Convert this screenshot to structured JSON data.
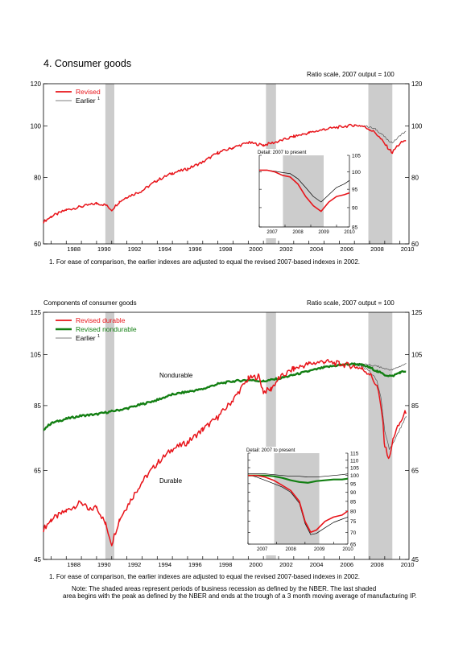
{
  "page": {
    "title": "4. Consumer goods",
    "top_scale": "Ratio scale, 2007 output = 100",
    "bottom_heading": "Components of consumer goods",
    "bottom_scale": "Ratio scale, 2007 output = 100",
    "footnote_top": "1. For ease of comparison, the earlier indexes are adjusted to equal the revised 2007-based indexes in 2002.",
    "footnote_bottom": "1. For ease of comparison, the earlier indexes are adjusted to equal the revised 2007-based indexes in 2002.",
    "note_line1": "Note: The shaded areas represent periods of business recession as defined by the NBER.  The last shaded",
    "note_line2": "area begins with the peak as defined by the NBER and ends at the trough of a 3 month moving average of manufacturing IP."
  },
  "colors": {
    "revised": "#e8141a",
    "earlier": "#555555",
    "nondurable": "#137f13",
    "recession": "#cccccc",
    "overlap": "#7a0c0c"
  },
  "chart_data": [
    {
      "type": "line",
      "scale": "log",
      "xlim": [
        1986.5,
        2010.6
      ],
      "ylim": [
        60,
        120
      ],
      "yticks": [
        60,
        80,
        100,
        120
      ],
      "xticks": [
        "1988",
        "1990",
        "1992",
        "1994",
        "1996",
        "1998",
        "2000",
        "2002",
        "2004",
        "2006",
        "2008",
        "2010"
      ],
      "recessions": [
        [
          1990.58,
          1991.17
        ],
        [
          2001.17,
          2001.83
        ],
        [
          2007.92,
          2009.5
        ]
      ],
      "legend": {
        "position": "top-left",
        "entries": [
          "Revised",
          "Earlier"
        ],
        "superscript": "1"
      },
      "series": [
        {
          "name": "Revised",
          "x": [
            1986.5,
            1987,
            1988,
            1989,
            1990,
            1990.6,
            1991,
            1991.5,
            1992,
            1993,
            1994,
            1995,
            1996,
            1997,
            1998,
            1999,
            2000,
            2001,
            2002,
            2003,
            2004,
            2005,
            2006,
            2007,
            2007.5,
            2008,
            2008.4,
            2008.8,
            2009.2,
            2009.5,
            2009.8,
            2010.1,
            2010.4
          ],
          "y": [
            66,
            67.5,
            69.5,
            70.5,
            71.5,
            71,
            69.5,
            72,
            73.5,
            75.5,
            79,
            81.5,
            83,
            85.5,
            89,
            91,
            93,
            92,
            93.5,
            95.5,
            97,
            98.5,
            99.5,
            100.3,
            100,
            98.5,
            97,
            94,
            91,
            89,
            91.5,
            93,
            94
          ]
        },
        {
          "name": "Earlier",
          "x": [
            2007.5,
            2008,
            2008.4,
            2008.8,
            2009.2,
            2009.5,
            2009.8,
            2010.1,
            2010.4
          ],
          "y": [
            100.3,
            99.5,
            98.5,
            96.5,
            94,
            93,
            94.5,
            96.5,
            97.5
          ]
        }
      ],
      "inset": {
        "title": "Detail: 2007 to present",
        "xlim": [
          2007,
          2010.5
        ],
        "ylim": [
          85,
          105
        ],
        "yticks": [
          85,
          90,
          95,
          100,
          105
        ],
        "xticks": [
          "2007",
          "2008",
          "2009",
          "2010"
        ],
        "series": [
          {
            "name": "Revised",
            "x": [
              2007,
              2007.3,
              2007.6,
              2007.9,
              2008.2,
              2008.5,
              2008.8,
              2009.1,
              2009.4,
              2009.7,
              2010,
              2010.3,
              2010.5
            ],
            "y": [
              100.5,
              100.5,
              100,
              99,
              98.5,
              96.5,
              93,
              90.5,
              89,
              91.5,
              93,
              93.5,
              94
            ]
          },
          {
            "name": "Earlier",
            "x": [
              2007,
              2007.3,
              2007.6,
              2007.9,
              2008.2,
              2008.5,
              2008.8,
              2009.1,
              2009.4,
              2009.7,
              2010,
              2010.3,
              2010.5
            ],
            "y": [
              100.5,
              100.5,
              100.2,
              99.8,
              99.5,
              98,
              95.5,
              93,
              91.5,
              93.5,
              95.5,
              96.5,
              97.5
            ]
          }
        ]
      }
    },
    {
      "type": "line",
      "scale": "log",
      "xlim": [
        1986.5,
        2010.6
      ],
      "ylim": [
        45,
        125
      ],
      "yticks": [
        45,
        65,
        85,
        105,
        125
      ],
      "xticks": [
        "1988",
        "1990",
        "1992",
        "1994",
        "1996",
        "1998",
        "2000",
        "2002",
        "2004",
        "2006",
        "2008",
        "2010"
      ],
      "recessions": [
        [
          1990.58,
          1991.17
        ],
        [
          2001.17,
          2001.83
        ],
        [
          2007.92,
          2009.5
        ]
      ],
      "legend": {
        "position": "top-left",
        "entries": [
          "Revised durable",
          "Revised nondurable",
          "Earlier"
        ],
        "superscript": "1"
      },
      "annotations": [
        "Nondurable",
        "Durable"
      ],
      "series": [
        {
          "name": "Revised durable",
          "x": [
            1986.5,
            1987,
            1988,
            1989,
            1989.5,
            1990,
            1990.6,
            1991,
            1991.5,
            1992,
            1993,
            1994,
            1995,
            1996,
            1997,
            1998,
            1999,
            2000,
            2000.7,
            2001,
            2001.5,
            2002,
            2003,
            2004,
            2005,
            2006,
            2007,
            2007.5,
            2008,
            2008.5,
            2008.8,
            2009,
            2009.3,
            2009.6,
            2010,
            2010.4
          ],
          "y": [
            51,
            53,
            55,
            57,
            55,
            56,
            52,
            48,
            53,
            56,
            62,
            67,
            71,
            73,
            77,
            81,
            87,
            95,
            96,
            90,
            91,
            95,
            99,
            101,
            102,
            101,
            100,
            99,
            97,
            92,
            83,
            72,
            68,
            75,
            79,
            83
          ]
        },
        {
          "name": "Revised nondurable",
          "x": [
            1986.5,
            1987,
            1988,
            1989,
            1990,
            1991,
            1992,
            1993,
            1994,
            1995,
            1996,
            1997,
            1998,
            1999,
            2000,
            2001,
            2002,
            2003,
            2004,
            2005,
            2006,
            2007,
            2007.5,
            2008,
            2008.5,
            2009,
            2009.5,
            2010,
            2010.4
          ],
          "y": [
            77,
            79,
            80.5,
            81.5,
            82,
            83,
            84,
            85.5,
            87,
            89,
            90,
            91,
            93,
            94,
            94.5,
            94,
            95,
            96.5,
            98,
            99.5,
            100.5,
            101,
            100.5,
            99.5,
            98,
            96.5,
            96,
            97.5,
            98
          ]
        },
        {
          "name": "Earlier",
          "x": [
            2007,
            2007.5,
            2008,
            2008.5,
            2009,
            2009.5,
            2010,
            2010.4
          ],
          "y": [
            101,
            101,
            100.5,
            100,
            99,
            98.5,
            100,
            101
          ]
        },
        {
          "name": "Earlier durable",
          "x": [
            2007,
            2007.5,
            2008,
            2008.5,
            2008.8,
            2009,
            2009.3,
            2009.6,
            2010,
            2010.4
          ],
          "y": [
            100.5,
            100,
            98,
            94,
            86,
            76,
            71,
            73,
            77,
            81
          ]
        }
      ],
      "inset": {
        "title": "Detail: 2007 to present",
        "xlim": [
          2007,
          2010.5
        ],
        "ylim": [
          65,
          115
        ],
        "yticks": [
          65,
          70,
          75,
          80,
          85,
          90,
          95,
          100,
          105,
          110,
          115
        ],
        "xticks": [
          "2007",
          "2008",
          "2009",
          "2010"
        ],
        "series": [
          {
            "name": "Revised durable",
            "x": [
              2007,
              2007.3,
              2007.6,
              2007.9,
              2008.2,
              2008.5,
              2008.8,
              2009,
              2009.2,
              2009.4,
              2009.7,
              2010,
              2010.3,
              2010.5
            ],
            "y": [
              100,
              100,
              99,
              97,
              94,
              91,
              85,
              75,
              70,
              71,
              75,
              77,
              78,
              80
            ]
          },
          {
            "name": "Revised nondurable",
            "x": [
              2007,
              2007.3,
              2007.6,
              2007.9,
              2008.2,
              2008.5,
              2008.8,
              2009.1,
              2009.4,
              2009.7,
              2010,
              2010.3,
              2010.5
            ],
            "y": [
              100,
              100,
              100,
              99.5,
              98.5,
              97,
              96,
              95.5,
              96.5,
              97,
              97.5,
              97.5,
              98
            ]
          },
          {
            "name": "Earlier",
            "x": [
              2007,
              2007.3,
              2007.6,
              2007.9,
              2008.2,
              2008.5,
              2008.8,
              2009.1,
              2009.4,
              2009.7,
              2010,
              2010.3,
              2010.5
            ],
            "y": [
              101,
              101,
              101,
              100.5,
              100,
              99.5,
              99.5,
              99,
              99,
              99.5,
              100,
              100.5,
              101
            ]
          },
          {
            "name": "Earlier durable",
            "x": [
              2007,
              2007.3,
              2007.6,
              2007.9,
              2008.2,
              2008.5,
              2008.8,
              2009,
              2009.2,
              2009.4,
              2009.7,
              2010,
              2010.3,
              2010.5
            ],
            "y": [
              100.5,
              99,
              97,
              95,
              93,
              90,
              84,
              74,
              69,
              69.5,
              72,
              74.5,
              76,
              77
            ]
          }
        ]
      }
    }
  ]
}
